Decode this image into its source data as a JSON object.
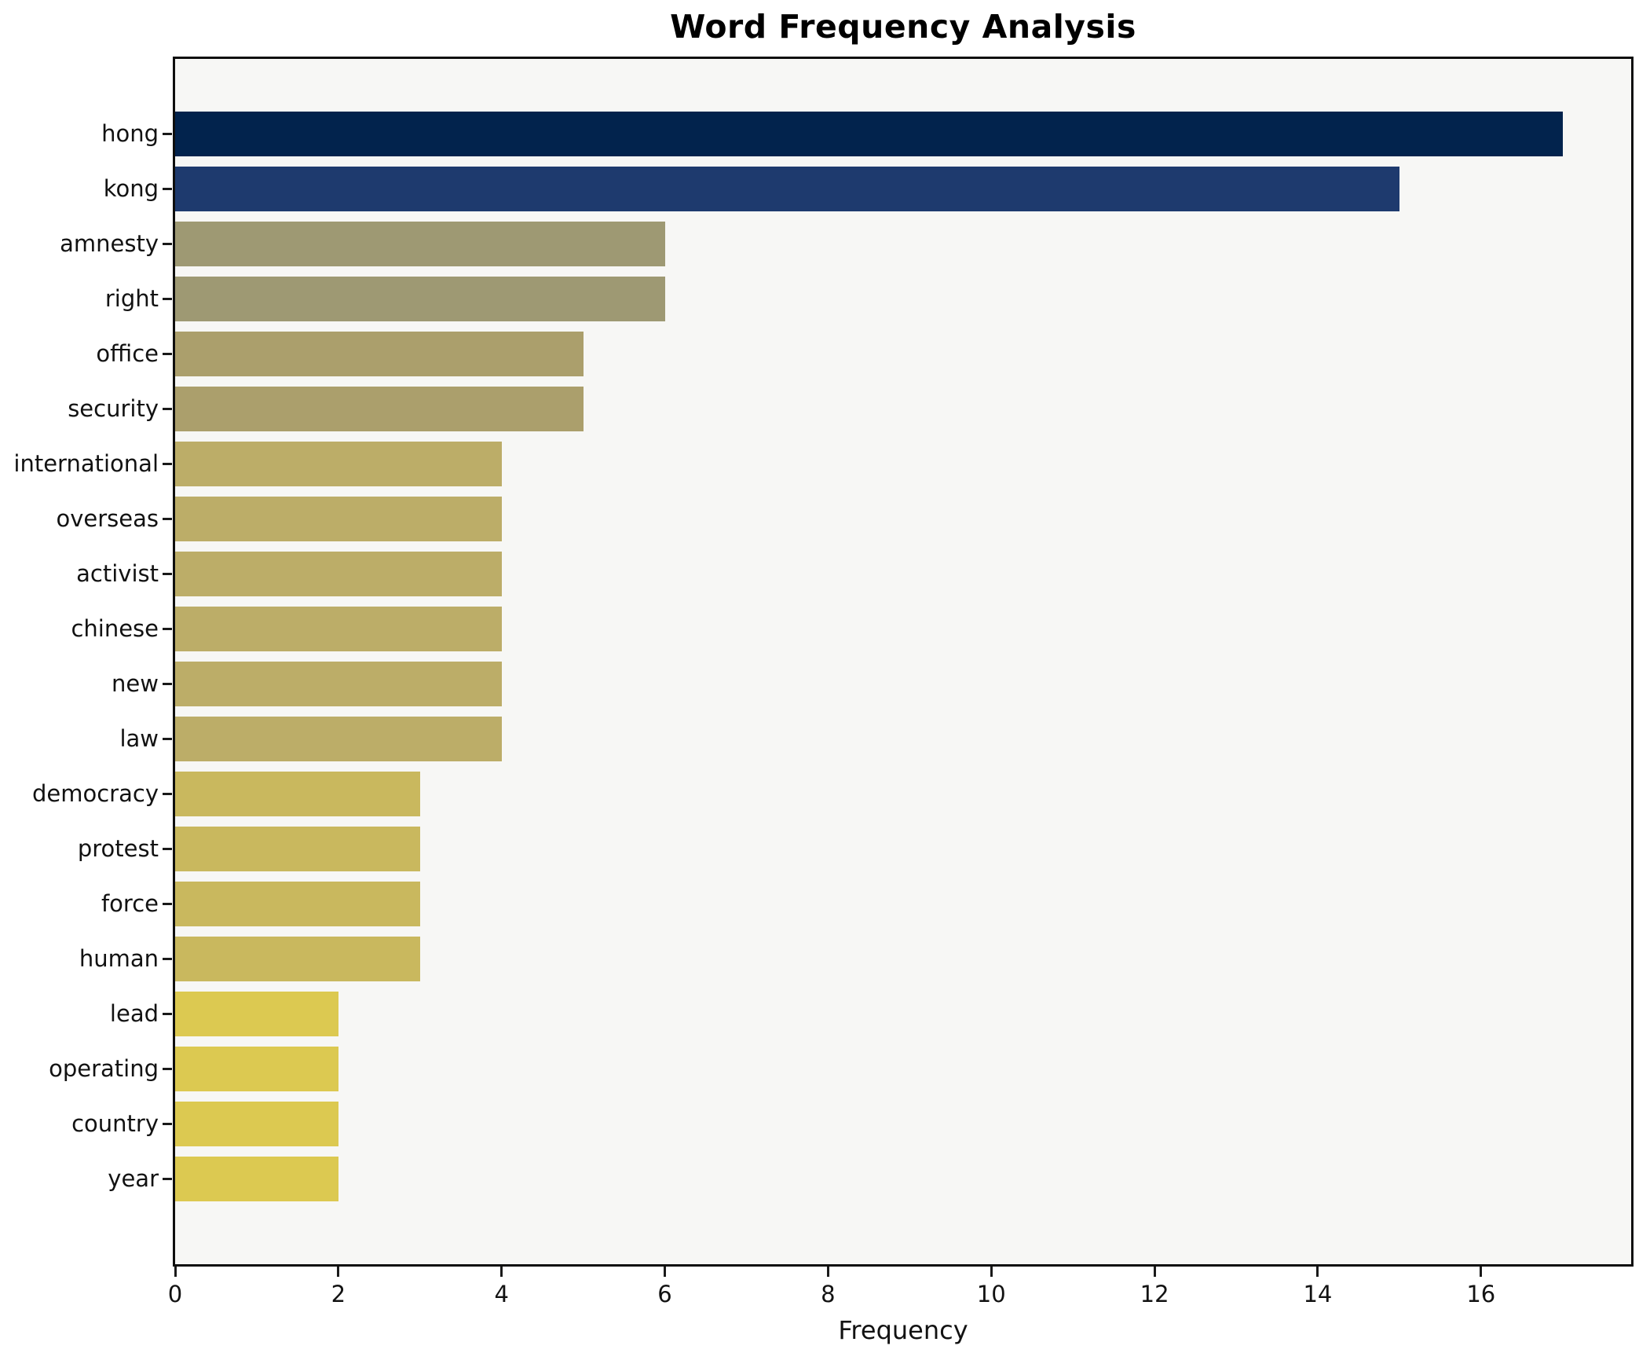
{
  "chart_data": {
    "type": "bar",
    "orientation": "horizontal",
    "title": "Word Frequency Analysis",
    "xlabel": "Frequency",
    "xlim": [
      0,
      17.84
    ],
    "xticks": [
      0,
      2,
      4,
      6,
      8,
      10,
      12,
      14,
      16
    ],
    "grid": false,
    "legend": null,
    "plot_background": "#f7f7f5",
    "figure_background": "#ffffff",
    "spine_color": "#0e0e0e",
    "categories": [
      "hong",
      "kong",
      "amnesty",
      "right",
      "office",
      "security",
      "international",
      "overseas",
      "activist",
      "chinese",
      "new",
      "law",
      "democracy",
      "protest",
      "force",
      "human",
      "lead",
      "operating",
      "country",
      "year"
    ],
    "values": [
      17,
      15,
      6,
      6,
      5,
      5,
      4,
      4,
      4,
      4,
      4,
      4,
      3,
      3,
      3,
      3,
      2,
      2,
      2,
      2
    ],
    "bar_colors": [
      "#02234d",
      "#1e3a6e",
      "#9e9973",
      "#9e9973",
      "#ab9f6c",
      "#ab9f6c",
      "#bcad68",
      "#bcad68",
      "#bcad68",
      "#bcad68",
      "#bcad68",
      "#bcad68",
      "#c9b85e",
      "#c9b85e",
      "#c9b85e",
      "#c9b85e",
      "#dcc951",
      "#dcc951",
      "#dcc951",
      "#dcc951"
    ]
  }
}
